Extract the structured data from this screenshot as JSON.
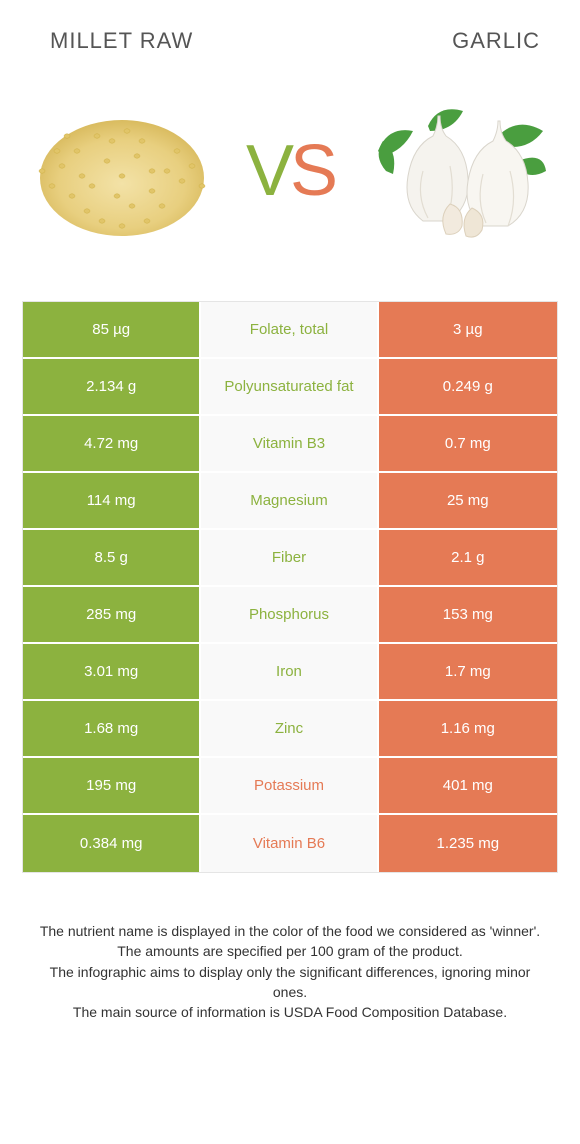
{
  "colors": {
    "left_bg": "#8cb23f",
    "right_bg": "#e57a55",
    "left_text": "#8cb23f",
    "right_text": "#e57a55",
    "mid_bg": "#f9f9f9",
    "vs_v": "#8cb23f",
    "vs_s": "#e57a55"
  },
  "header": {
    "left_title": "Millet raw",
    "right_title": "Garlic",
    "vs_v": "V",
    "vs_s": "S"
  },
  "rows": [
    {
      "left": "85 µg",
      "label": "Folate, total",
      "right": "3 µg",
      "winner": "left"
    },
    {
      "left": "2.134 g",
      "label": "Polyunsaturated fat",
      "right": "0.249 g",
      "winner": "left"
    },
    {
      "left": "4.72 mg",
      "label": "Vitamin B3",
      "right": "0.7 mg",
      "winner": "left"
    },
    {
      "left": "114 mg",
      "label": "Magnesium",
      "right": "25 mg",
      "winner": "left"
    },
    {
      "left": "8.5 g",
      "label": "Fiber",
      "right": "2.1 g",
      "winner": "left"
    },
    {
      "left": "285 mg",
      "label": "Phosphorus",
      "right": "153 mg",
      "winner": "left"
    },
    {
      "left": "3.01 mg",
      "label": "Iron",
      "right": "1.7 mg",
      "winner": "left"
    },
    {
      "left": "1.68 mg",
      "label": "Zinc",
      "right": "1.16 mg",
      "winner": "left"
    },
    {
      "left": "195 mg",
      "label": "Potassium",
      "right": "401 mg",
      "winner": "right"
    },
    {
      "left": "0.384 mg",
      "label": "Vitamin B6",
      "right": "1.235 mg",
      "winner": "right"
    }
  ],
  "footer": {
    "line1": "The nutrient name is displayed in the color of the food we considered as 'winner'.",
    "line2": "The amounts are specified per 100 gram of the product.",
    "line3": "The infographic aims to display only the significant differences, ignoring minor ones.",
    "line4": "The main source of information is USDA Food Composition Database."
  }
}
